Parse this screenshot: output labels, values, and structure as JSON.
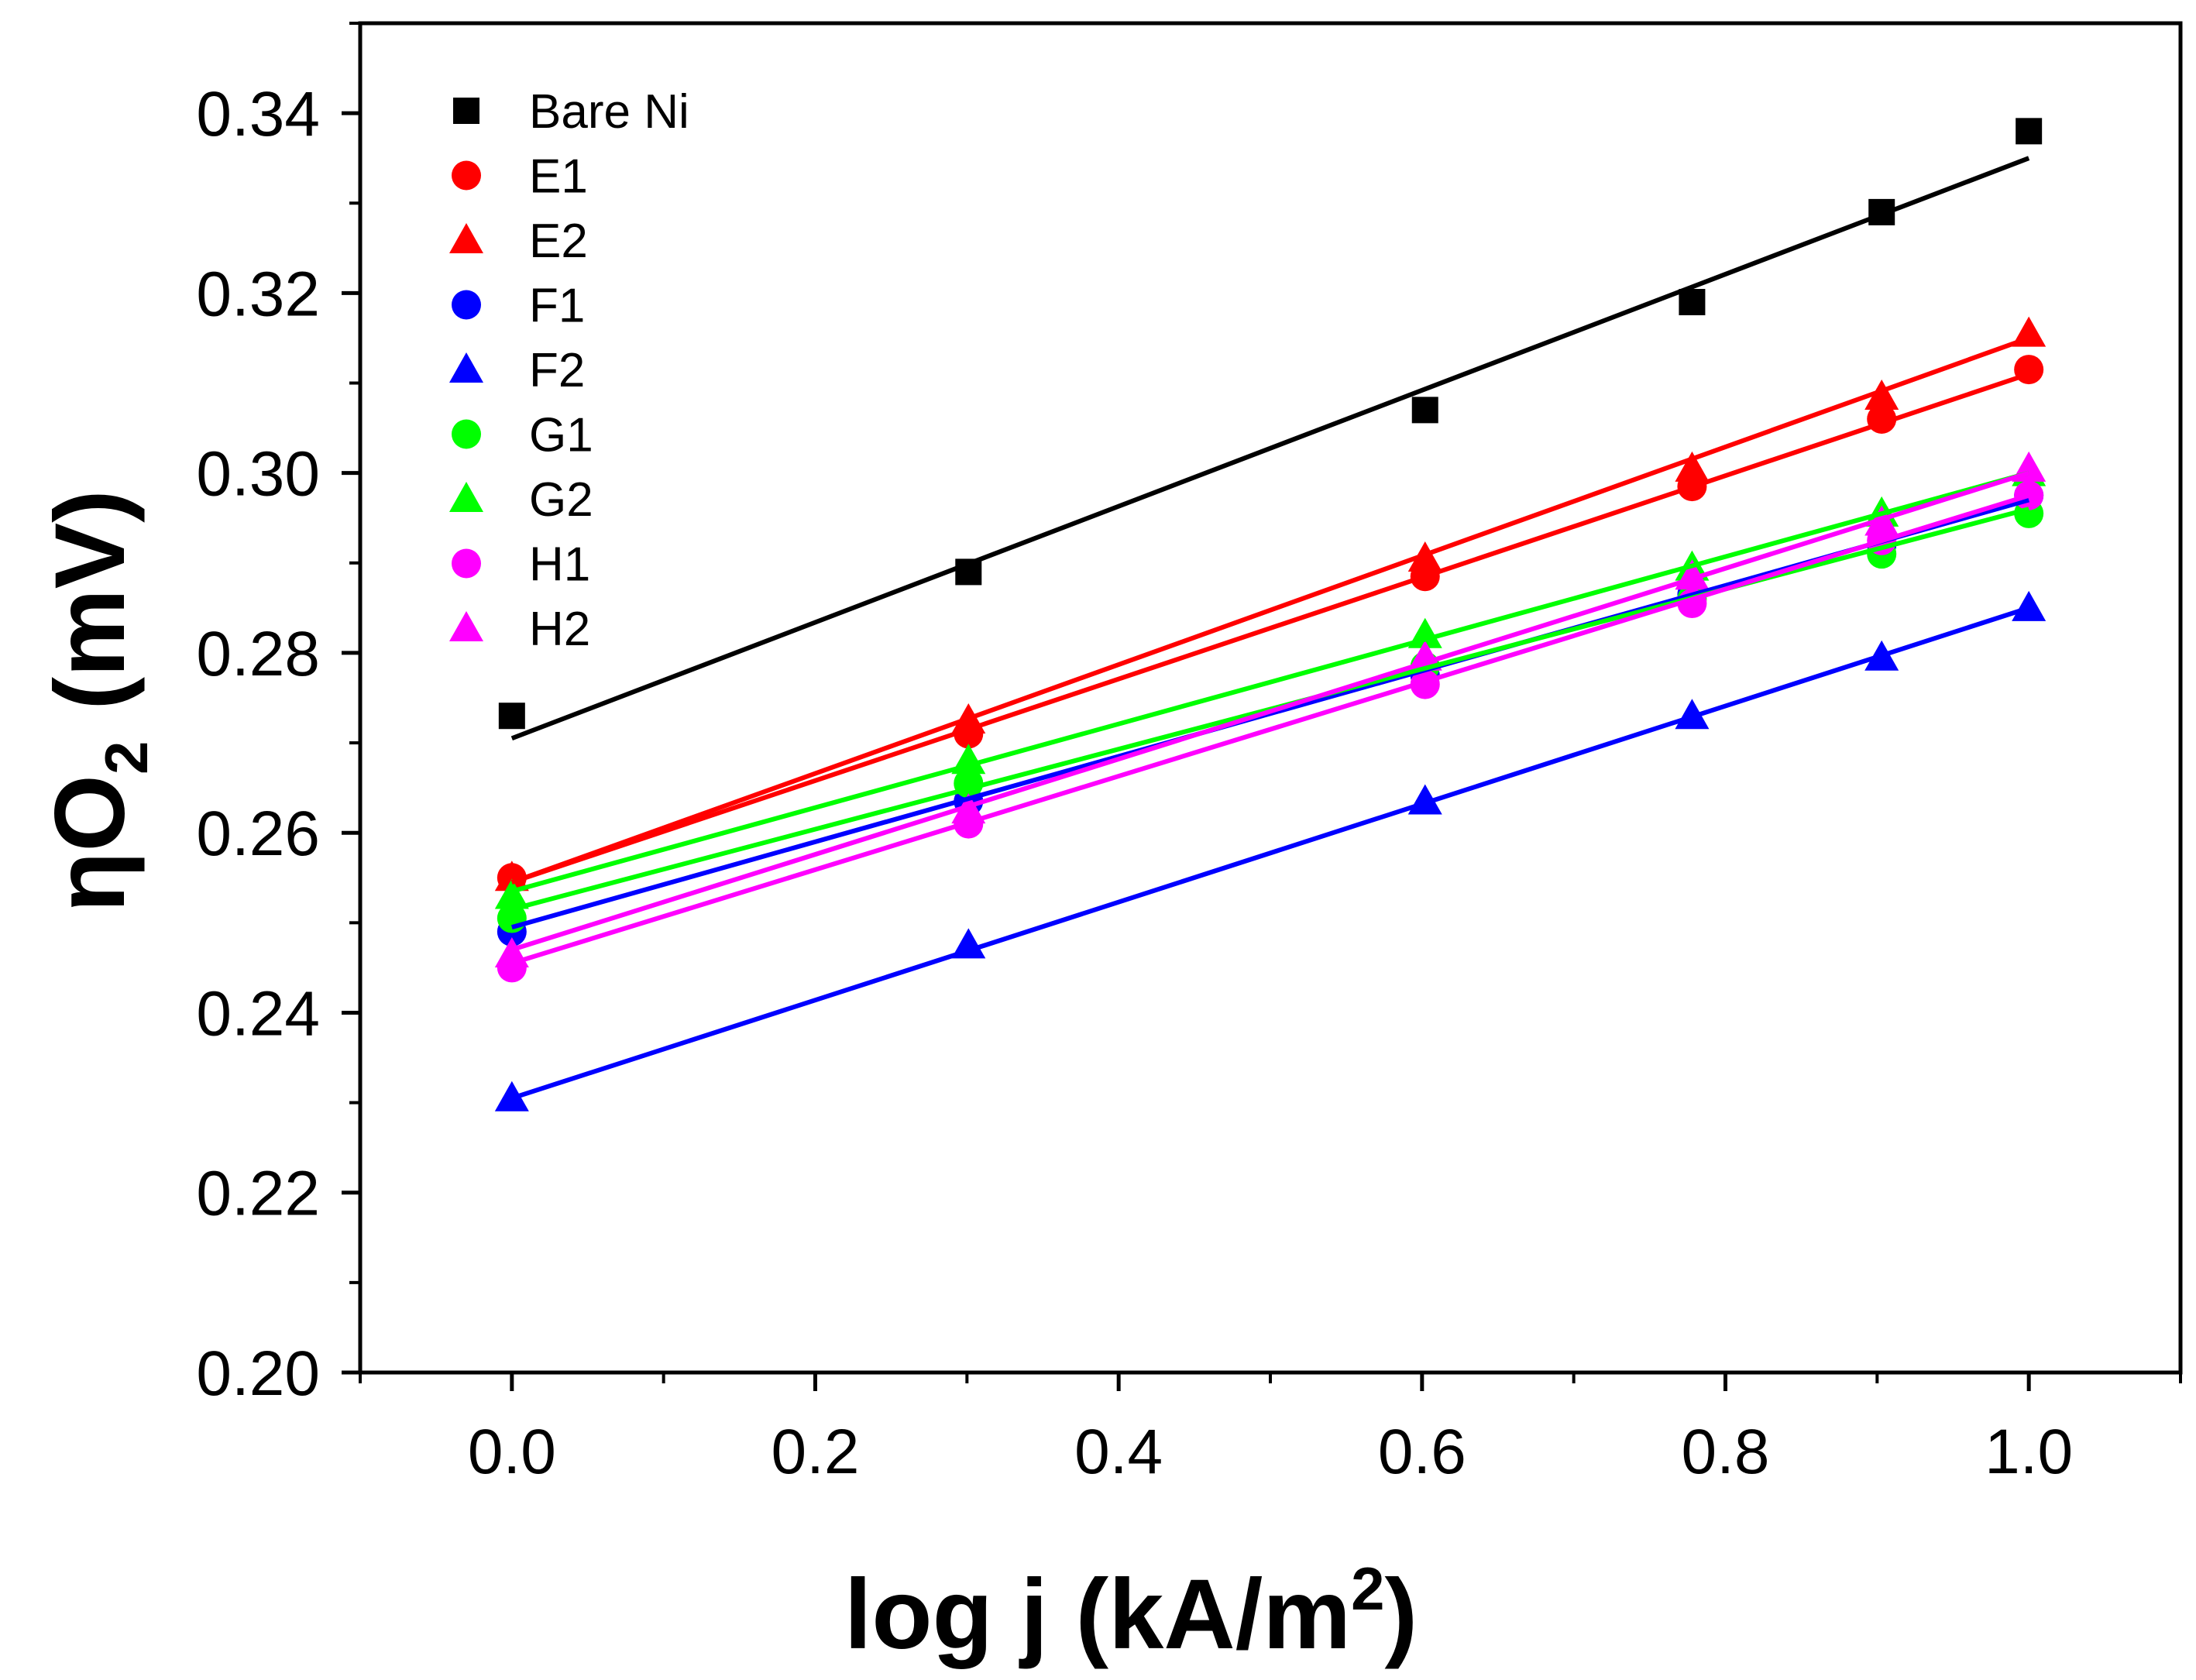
{
  "chart_data": {
    "type": "scatter",
    "title": "",
    "xlabel": {
      "main": "log j (kA/m",
      "sup": "2",
      "end": ")"
    },
    "ylabel": {
      "eta": "η",
      "O": "O",
      "sub": "2",
      "unit": "(mV)"
    },
    "xlim": [
      -0.1,
      1.1
    ],
    "ylim": [
      0.2,
      0.35
    ],
    "xticks": [
      "0.0",
      "0.2",
      "0.4",
      "0.6",
      "0.8",
      "1.0"
    ],
    "xtick_values": [
      0.0,
      0.2,
      0.4,
      0.6,
      0.8,
      1.0
    ],
    "yticks": [
      "0.20",
      "0.22",
      "0.24",
      "0.26",
      "0.28",
      "0.30",
      "0.32",
      "0.34"
    ],
    "ytick_values": [
      0.2,
      0.22,
      0.24,
      0.26,
      0.28,
      0.3,
      0.32,
      0.34
    ],
    "grid": false,
    "legend_position": "top-left",
    "x": [
      0.0,
      0.301,
      0.602,
      0.778,
      0.903,
      1.0
    ],
    "series": [
      {
        "name": "Bare Ni",
        "marker": "square",
        "color": "#000000",
        "values": [
          0.273,
          0.289,
          0.307,
          0.319,
          0.329,
          0.338
        ],
        "fit": [
          0.2705,
          0.335
        ]
      },
      {
        "name": "E1",
        "marker": "circle",
        "color": "#ff0000",
        "values": [
          0.255,
          0.271,
          0.2885,
          0.2985,
          0.306,
          0.3115
        ],
        "fit": [
          0.2545,
          0.311
        ]
      },
      {
        "name": "E2",
        "marker": "triangle",
        "color": "#ff0000",
        "values": [
          0.255,
          0.2725,
          0.2905,
          0.3005,
          0.3085,
          0.3155
        ],
        "fit": [
          0.2545,
          0.315
        ]
      },
      {
        "name": "F1",
        "marker": "circle",
        "color": "#0000ff",
        "values": [
          0.249,
          0.2635,
          0.2775,
          0.2865,
          0.292,
          0.2975
        ],
        "fit": [
          0.2495,
          0.297
        ]
      },
      {
        "name": "F2",
        "marker": "triangle",
        "color": "#0000ff",
        "values": [
          0.2305,
          0.2475,
          0.2635,
          0.273,
          0.2795,
          0.285
        ],
        "fit": [
          0.2305,
          0.285
        ]
      },
      {
        "name": "G1",
        "marker": "circle",
        "color": "#00ff00",
        "values": [
          0.2505,
          0.2655,
          0.2785,
          0.286,
          0.291,
          0.2955
        ],
        "fit": [
          0.2515,
          0.296
        ]
      },
      {
        "name": "G2",
        "marker": "triangle",
        "color": "#00ff00",
        "values": [
          0.253,
          0.268,
          0.282,
          0.2895,
          0.2955,
          0.3
        ],
        "fit": [
          0.2535,
          0.3
        ]
      },
      {
        "name": "H1",
        "marker": "circle",
        "color": "#ff00ff",
        "values": [
          0.245,
          0.261,
          0.2765,
          0.2855,
          0.2925,
          0.2975
        ],
        "fit": [
          0.2455,
          0.2975
        ]
      },
      {
        "name": "H2",
        "marker": "triangle",
        "color": "#ff00ff",
        "values": [
          0.2465,
          0.2625,
          0.2795,
          0.2885,
          0.2945,
          0.3005
        ],
        "fit": [
          0.247,
          0.3
        ]
      }
    ]
  }
}
